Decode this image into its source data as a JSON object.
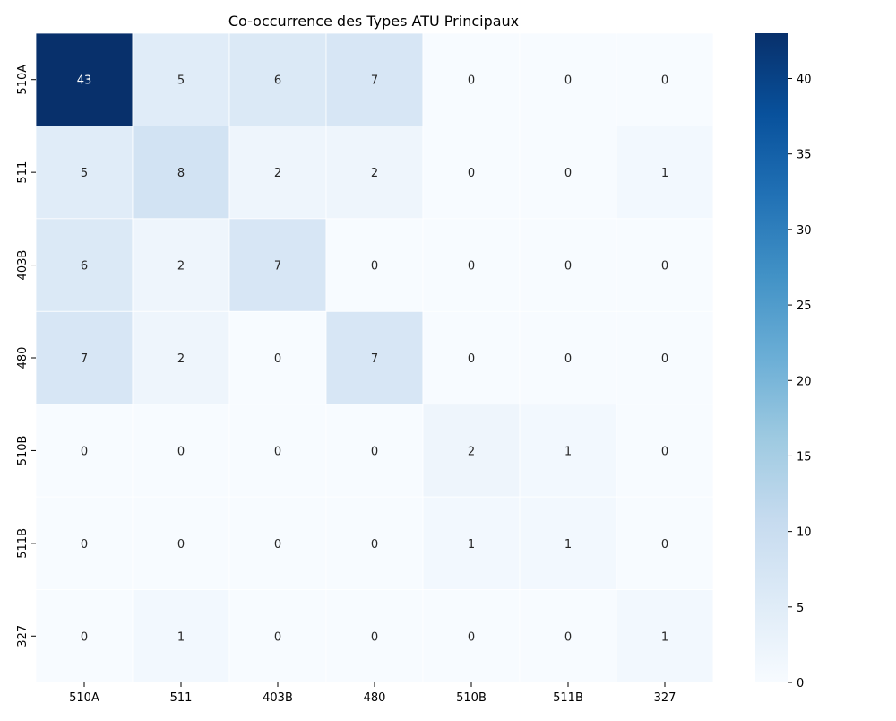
{
  "chart_data": {
    "type": "heatmap",
    "title": "Co-occurrence des Types ATU Principaux",
    "xlabel": "",
    "ylabel": "",
    "x_categories": [
      "510A",
      "511",
      "403B",
      "480",
      "510B",
      "511B",
      "327"
    ],
    "y_categories": [
      "510A",
      "511",
      "403B",
      "480",
      "510B",
      "511B",
      "327"
    ],
    "values": [
      [
        43,
        5,
        6,
        7,
        0,
        0,
        0
      ],
      [
        5,
        8,
        2,
        2,
        0,
        0,
        1
      ],
      [
        6,
        2,
        7,
        0,
        0,
        0,
        0
      ],
      [
        7,
        2,
        0,
        7,
        0,
        0,
        0
      ],
      [
        0,
        0,
        0,
        0,
        2,
        1,
        0
      ],
      [
        0,
        0,
        0,
        0,
        1,
        1,
        0
      ],
      [
        0,
        1,
        0,
        0,
        0,
        0,
        1
      ]
    ],
    "colormap": "Blues",
    "colorbar": {
      "min": 0,
      "max": 43,
      "ticks": [
        0,
        5,
        10,
        15,
        20,
        25,
        30,
        35,
        40
      ]
    },
    "annotations": true,
    "grid": false,
    "colors": {
      "low": "#f7fbff",
      "high": "#08306b",
      "cell_border": "#ffffff",
      "text_dark": "#262626",
      "text_light": "#ffffff"
    }
  }
}
